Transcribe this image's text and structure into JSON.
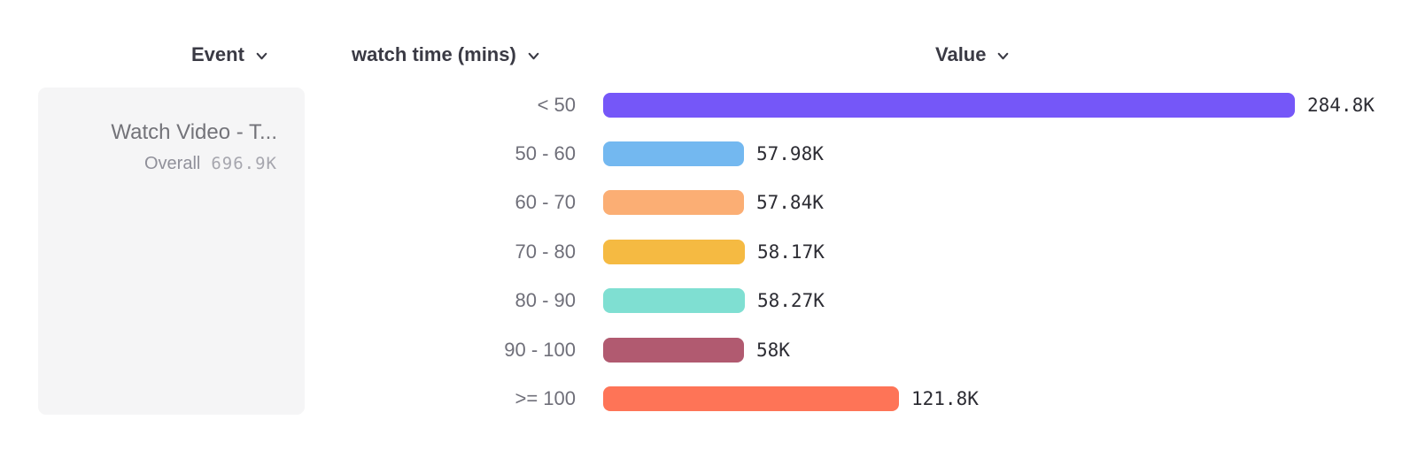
{
  "columns": {
    "event": {
      "label": "Event"
    },
    "breakdown": {
      "label": "watch time (mins)"
    },
    "value": {
      "label": "Value"
    }
  },
  "event_card": {
    "title": "Watch Video - T...",
    "overall_label": "Overall",
    "overall_value": "696.9K"
  },
  "chart_data": {
    "type": "bar",
    "orientation": "horizontal",
    "title": "",
    "xlabel": "Value",
    "ylabel": "watch time (mins)",
    "categories": [
      "< 50",
      "50 - 60",
      "60 - 70",
      "70 - 80",
      "80 - 90",
      "90 - 100",
      ">= 100"
    ],
    "values": [
      284800,
      57980,
      57840,
      58170,
      58270,
      58000,
      121800
    ],
    "value_labels": [
      "284.8K",
      "57.98K",
      "57.84K",
      "58.17K",
      "58.27K",
      "58K",
      "121.8K"
    ],
    "bar_colors": [
      "#7557f8",
      "#73b8f0",
      "#fbae74",
      "#f5ba42",
      "#7fdfd2",
      "#b15a70",
      "#fe7457"
    ],
    "xlim": [
      0,
      284800
    ],
    "grid": false,
    "legend": false
  },
  "colors": {
    "header_text": "#3a3a44",
    "category_text": "#6f6f79",
    "value_text": "#2c2c33",
    "card_bg": "#f5f5f6"
  }
}
